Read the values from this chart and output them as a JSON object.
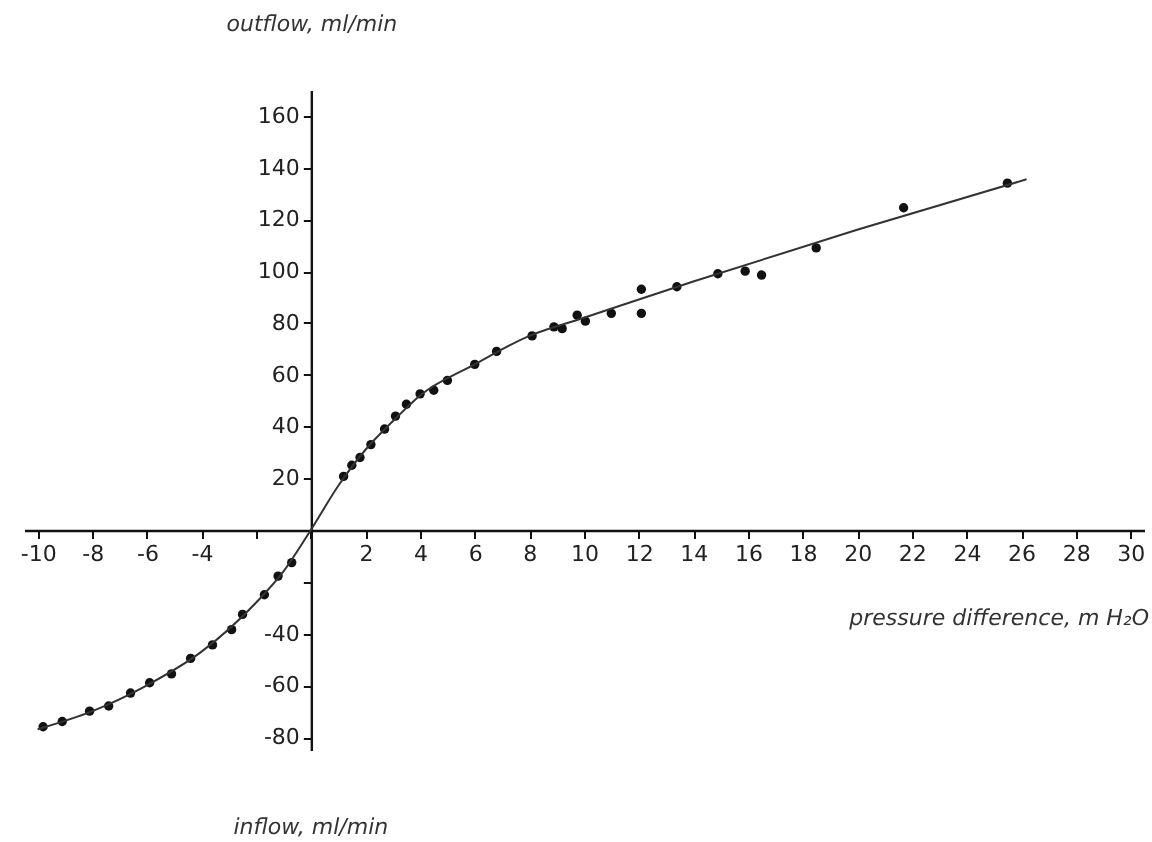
{
  "chart_data": {
    "type": "scatter",
    "xlabel": "pressure difference, m H₂O",
    "ylabel": "outflow, ml/min",
    "annotations": [
      "inflow, ml/min"
    ],
    "xlim": [
      -10.5,
      30.5
    ],
    "ylim": [
      -85,
      170
    ],
    "xticks": [
      -10,
      -8,
      -6,
      -4,
      {
        "value": -2,
        "label": null
      },
      {
        "value": 0,
        "label": null
      },
      2,
      4,
      6,
      8,
      10,
      12,
      14,
      16,
      18,
      20,
      22,
      24,
      26,
      28,
      30
    ],
    "yticks": [
      -80,
      -60,
      -40,
      {
        "value": -20,
        "label": null
      },
      {
        "value": 0,
        "label": null
      },
      20,
      40,
      60,
      80,
      100,
      120,
      140,
      160
    ],
    "grid": false,
    "legend": false,
    "marker": "circle",
    "series": [
      {
        "color": "#111111",
        "x": [
          -9.8,
          -9.1,
          -8.1,
          -7.4,
          -6.6,
          -5.9,
          -5.1,
          -4.4,
          -3.6,
          -2.9,
          -2.5,
          -1.7,
          -1.2,
          -0.7,
          1.2,
          1.5,
          1.8,
          2.2,
          2.7,
          3.1,
          3.5,
          4.0,
          4.5,
          5.0,
          6.0,
          6.8,
          8.1,
          8.9,
          9.2,
          9.75,
          10.05,
          11.0,
          12.1,
          12.1,
          13.4,
          14.9,
          15.9,
          16.5,
          18.5,
          21.7,
          25.5
        ],
        "values": [
          -76,
          -74,
          -70,
          -68,
          -63,
          -59,
          -55.6,
          -49.6,
          -44.4,
          -38.5,
          -32.6,
          -25,
          -17.8,
          -12.6,
          20.7,
          25,
          28,
          33,
          39,
          44,
          48.6,
          52.6,
          54,
          57.8,
          64,
          69,
          75,
          78.5,
          77.8,
          83,
          80.7,
          83.7,
          93,
          83.7,
          94,
          99,
          100,
          98.5,
          109,
          124.5,
          134
        ]
      },
      {
        "type": "line",
        "color": "#333333",
        "line_style": "solid",
        "marker": "none",
        "x": [
          -10,
          -8,
          -6,
          -4,
          -2,
          -1,
          0,
          1,
          2,
          3,
          4,
          6,
          8,
          10,
          14,
          20,
          26.2
        ],
        "values": [
          -77,
          -70,
          -60,
          -47,
          -28,
          -16,
          0,
          17,
          31,
          42,
          52,
          64,
          75,
          82,
          96,
          116,
          135.5
        ]
      }
    ]
  }
}
